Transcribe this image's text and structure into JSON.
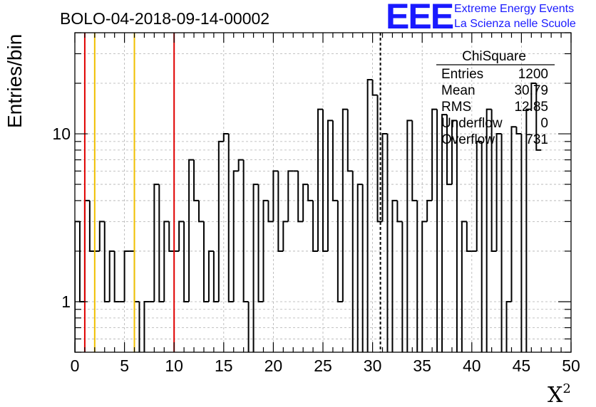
{
  "chart_data": {
    "type": "histogram",
    "title": "BOLO-04-2018-09-14-00002",
    "xlabel": "X",
    "xlabel_superscript": "2",
    "ylabel": "Entries/bin",
    "xlim": [
      0,
      50
    ],
    "ylim": [
      0.5,
      40
    ],
    "yscale": "log",
    "grid": true,
    "bin_width": 0.5,
    "x_ticks": [
      0,
      5,
      10,
      15,
      20,
      25,
      30,
      35,
      40,
      45,
      50
    ],
    "y_tick_labels": [
      {
        "value": 1,
        "label": "1"
      },
      {
        "value": 10,
        "label": "10"
      }
    ],
    "bin_counts": [
      3,
      1,
      4,
      2,
      2,
      3,
      1,
      2,
      1,
      1,
      2,
      2,
      1,
      0,
      1,
      1,
      5,
      1,
      3,
      2,
      2,
      3,
      1,
      7,
      4,
      3,
      1,
      2,
      1,
      9,
      10,
      1,
      6,
      7,
      1,
      0,
      5,
      1,
      4,
      3,
      6,
      2,
      3,
      6,
      6,
      3,
      5,
      4,
      2,
      14,
      2,
      12,
      4,
      1,
      14,
      6,
      0,
      5,
      0,
      21,
      17,
      3,
      10,
      0,
      4,
      3,
      0,
      12,
      4,
      0,
      3,
      4,
      14,
      0,
      13,
      5,
      12,
      0,
      3,
      2,
      2,
      9,
      0,
      14,
      2,
      10,
      0,
      1,
      11,
      10,
      0,
      14,
      20,
      8
    ],
    "vertical_lines": [
      {
        "x": 1.0,
        "color": "#e00000",
        "style": "solid"
      },
      {
        "x": 2.0,
        "color": "#f0c000",
        "style": "solid"
      },
      {
        "x": 6.0,
        "color": "#f0c000",
        "style": "solid"
      },
      {
        "x": 10.0,
        "color": "#e00000",
        "style": "solid"
      },
      {
        "x": 30.79,
        "color": "#000000",
        "style": "dashed"
      }
    ],
    "stats_box": {
      "title": "ChiSquare",
      "rows": [
        {
          "label": "Entries",
          "value": "1200"
        },
        {
          "label": "Mean",
          "value": "30.79"
        },
        {
          "label": "RMS",
          "value": "12.85"
        },
        {
          "label": "Underflow",
          "value": "0"
        },
        {
          "label": "Overflow",
          "value": "731"
        }
      ]
    }
  },
  "logo": {
    "mark": "EEE",
    "line1": "Extreme Energy Events",
    "line2": "La Scienza nelle Scuole",
    "color": "#1a1aff"
  }
}
